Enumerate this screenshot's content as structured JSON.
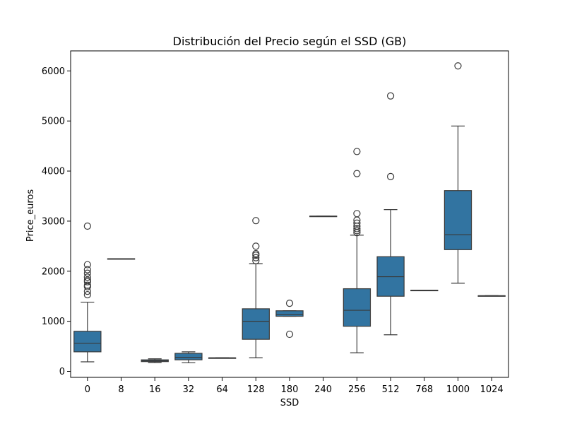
{
  "chart_data": {
    "type": "boxplot",
    "title": "Distribución del Precio según el SSD (GB)",
    "xlabel": "SSD",
    "ylabel": "Price_euros",
    "ylim": [
      -120,
      6400
    ],
    "yticks": [
      0,
      1000,
      2000,
      3000,
      4000,
      5000,
      6000
    ],
    "box_color": "#3274A1",
    "line_color": "#3a3a3a",
    "grid": false,
    "categories": [
      "0",
      "8",
      "16",
      "32",
      "64",
      "128",
      "180",
      "240",
      "256",
      "512",
      "768",
      "1000",
      "1024"
    ],
    "boxes": [
      {
        "category": "0",
        "whisker_low": 190,
        "q1": 390,
        "median": 560,
        "q3": 800,
        "whisker_high": 1380,
        "outliers": [
          1530,
          1600,
          1690,
          1720,
          1790,
          1820,
          1880,
          1960,
          2030,
          2130,
          2900
        ]
      },
      {
        "category": "8",
        "whisker_low": 2250,
        "q1": 2250,
        "median": 2250,
        "q3": 2250,
        "whisker_high": 2250,
        "outliers": []
      },
      {
        "category": "16",
        "whisker_low": 175,
        "q1": 195,
        "median": 210,
        "q3": 230,
        "whisker_high": 250,
        "outliers": []
      },
      {
        "category": "32",
        "whisker_low": 170,
        "q1": 230,
        "median": 280,
        "q3": 360,
        "whisker_high": 390,
        "outliers": []
      },
      {
        "category": "64",
        "whisker_low": 270,
        "q1": 270,
        "median": 270,
        "q3": 270,
        "whisker_high": 270,
        "outliers": []
      },
      {
        "category": "128",
        "whisker_low": 270,
        "q1": 640,
        "median": 1000,
        "q3": 1250,
        "whisker_high": 2150,
        "outliers": [
          2210,
          2270,
          2320,
          2350,
          2500,
          3010
        ]
      },
      {
        "category": "180",
        "whisker_low": 1100,
        "q1": 1100,
        "median": 1130,
        "q3": 1210,
        "whisker_high": 1210,
        "outliers": [
          740,
          1360
        ]
      },
      {
        "category": "240",
        "whisker_low": 3100,
        "q1": 3100,
        "median": 3100,
        "q3": 3100,
        "whisker_high": 3100,
        "outliers": []
      },
      {
        "category": "256",
        "whisker_low": 370,
        "q1": 900,
        "median": 1220,
        "q3": 1650,
        "whisker_high": 2720,
        "outliers": [
          2770,
          2810,
          2850,
          2900,
          2960,
          3020,
          3150,
          3950,
          4390
        ]
      },
      {
        "category": "512",
        "whisker_low": 730,
        "q1": 1500,
        "median": 1890,
        "q3": 2290,
        "whisker_high": 3230,
        "outliers": [
          3890,
          5500
        ]
      },
      {
        "category": "768",
        "whisker_low": 1620,
        "q1": 1620,
        "median": 1620,
        "q3": 1620,
        "whisker_high": 1620,
        "outliers": []
      },
      {
        "category": "1000",
        "whisker_low": 1760,
        "q1": 2430,
        "median": 2730,
        "q3": 3610,
        "whisker_high": 4900,
        "outliers": [
          6100
        ]
      },
      {
        "category": "1024",
        "whisker_low": 1510,
        "q1": 1510,
        "median": 1510,
        "q3": 1510,
        "whisker_high": 1510,
        "outliers": []
      }
    ]
  }
}
